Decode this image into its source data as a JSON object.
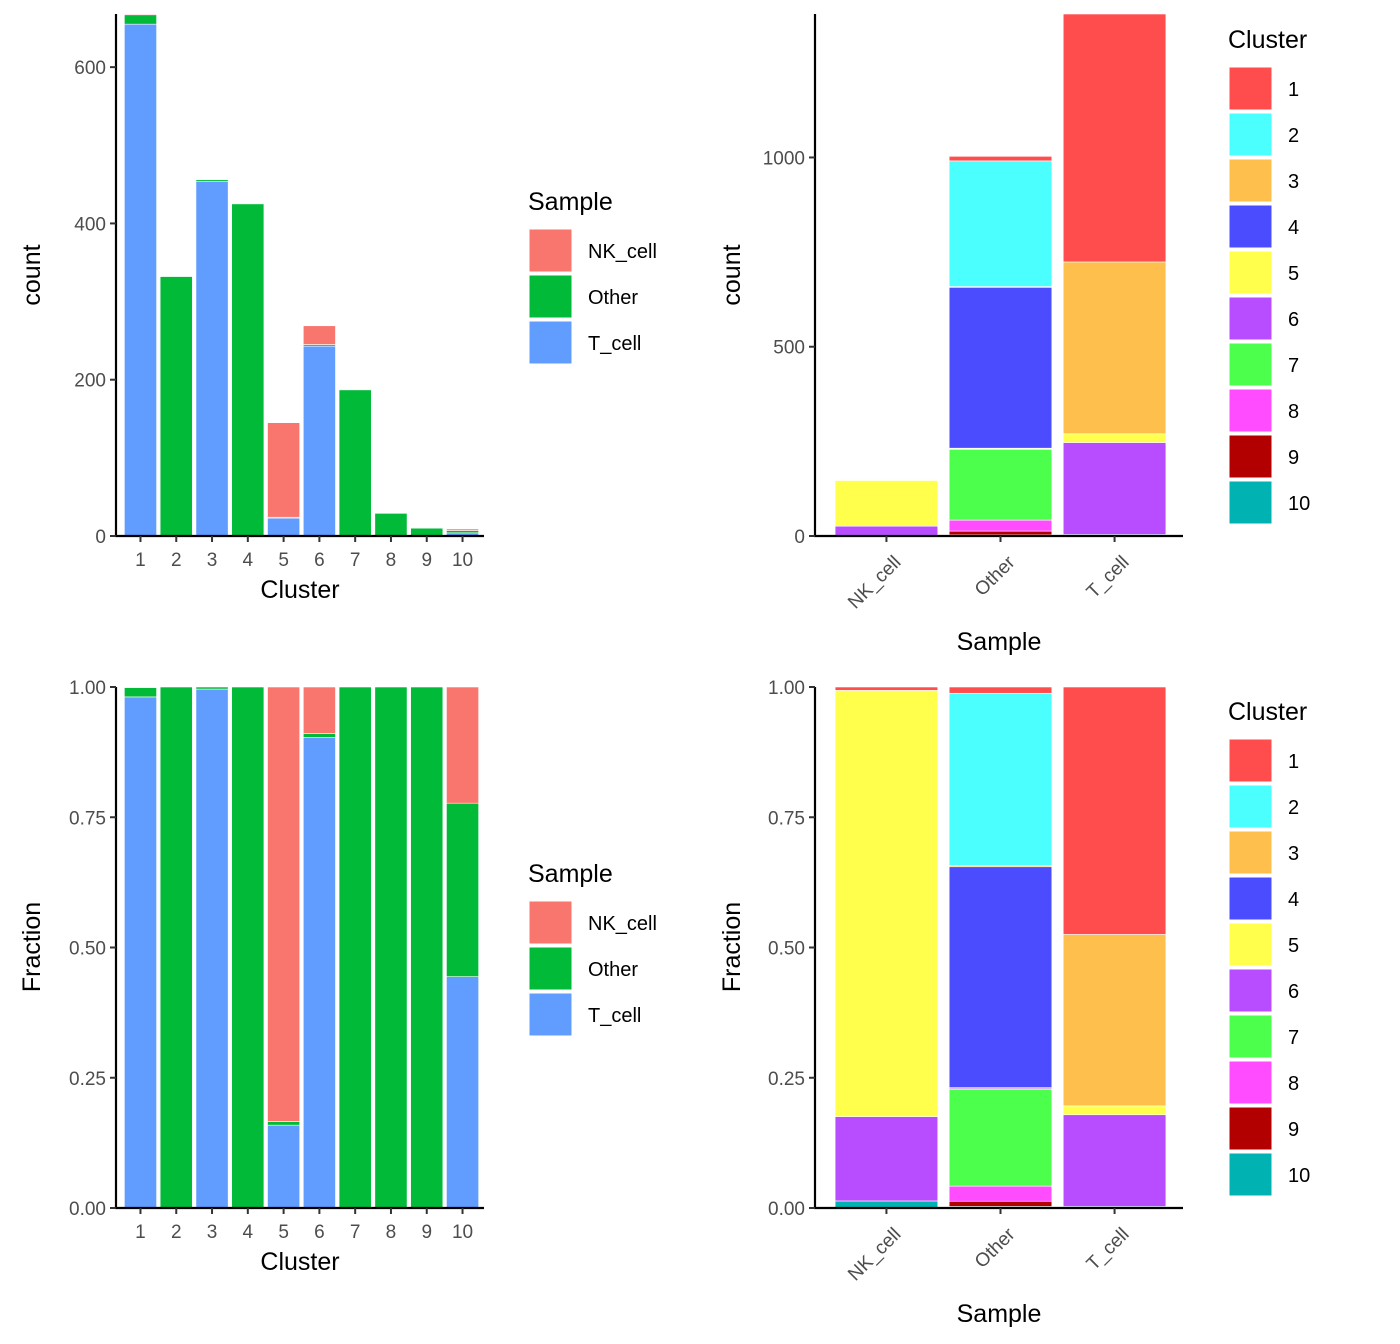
{
  "chart_data": [
    {
      "id": "count-by-cluster",
      "type": "bar",
      "stacked": true,
      "title": "",
      "xlabel": "Cluster",
      "ylabel": "count",
      "categories": [
        "1",
        "2",
        "3",
        "4",
        "5",
        "6",
        "7",
        "8",
        "9",
        "10"
      ],
      "ylim": [
        0,
        668
      ],
      "yticks": [
        0,
        200,
        400,
        600
      ],
      "ytick_labels": [
        "0",
        "200",
        "400",
        "600"
      ],
      "grid": false,
      "legend": {
        "title": "Sample",
        "position": "right"
      },
      "series": [
        {
          "name": "T_cell",
          "color": "#619CFF",
          "values": [
            655,
            0,
            454,
            0,
            23,
            243,
            0,
            0,
            0,
            4
          ]
        },
        {
          "name": "Other",
          "color": "#00BA38",
          "values": [
            12,
            332,
            2,
            425,
            1,
            2,
            187,
            29,
            10,
            3
          ]
        },
        {
          "name": "NK_cell",
          "color": "#F8766D",
          "values": [
            1,
            0,
            0,
            0,
            121,
            24,
            0,
            0,
            0,
            2
          ]
        }
      ]
    },
    {
      "id": "count-by-sample",
      "type": "bar",
      "stacked": true,
      "title": "",
      "xlabel": "Sample",
      "ylabel": "count",
      "categories": [
        "NK_cell",
        "Other",
        "T_cell"
      ],
      "ylim": [
        0,
        1379
      ],
      "yticks": [
        0,
        500,
        1000
      ],
      "ytick_labels": [
        "0",
        "500",
        "1000"
      ],
      "grid": false,
      "legend": {
        "title": "Cluster",
        "position": "right"
      },
      "series": [
        {
          "name": "10",
          "color": "#00B2B2",
          "values": [
            2,
            3,
            4
          ]
        },
        {
          "name": "9",
          "color": "#B20000",
          "values": [
            0,
            10,
            0
          ]
        },
        {
          "name": "8",
          "color": "#FF4CFF",
          "values": [
            0,
            29,
            0
          ]
        },
        {
          "name": "7",
          "color": "#4CFF4C",
          "values": [
            0,
            187,
            0
          ]
        },
        {
          "name": "6",
          "color": "#B84CFF",
          "values": [
            24,
            2,
            243
          ]
        },
        {
          "name": "5",
          "color": "#FFFF4C",
          "values": [
            121,
            1,
            23
          ]
        },
        {
          "name": "4",
          "color": "#4C4CFF",
          "values": [
            0,
            425,
            0
          ]
        },
        {
          "name": "3",
          "color": "#FFBF4C",
          "values": [
            0,
            2,
            454
          ]
        },
        {
          "name": "2",
          "color": "#4CFFFF",
          "values": [
            0,
            332,
            0
          ]
        },
        {
          "name": "1",
          "color": "#FF4C4C",
          "values": [
            1,
            12,
            655
          ]
        }
      ]
    },
    {
      "id": "fraction-by-cluster",
      "type": "bar",
      "stacked": true,
      "normalized": true,
      "title": "",
      "xlabel": "Cluster",
      "ylabel": "Fraction",
      "categories": [
        "1",
        "2",
        "3",
        "4",
        "5",
        "6",
        "7",
        "8",
        "9",
        "10"
      ],
      "ylim": [
        0,
        1
      ],
      "yticks": [
        0,
        0.25,
        0.5,
        0.75,
        1
      ],
      "ytick_labels": [
        "0.00",
        "0.25",
        "0.50",
        "0.75",
        "1.00"
      ],
      "grid": false,
      "legend": {
        "title": "Sample",
        "position": "right"
      },
      "series": [
        {
          "name": "T_cell",
          "color": "#619CFF",
          "values": [
            0.981,
            0,
            0.996,
            0,
            0.159,
            0.903,
            0,
            0,
            0,
            0.444
          ]
        },
        {
          "name": "Other",
          "color": "#00BA38",
          "values": [
            0.018,
            1,
            0.004,
            1,
            0.007,
            0.008,
            1,
            1,
            1,
            0.333
          ]
        },
        {
          "name": "NK_cell",
          "color": "#F8766D",
          "values": [
            0.001,
            0,
            0,
            0,
            0.834,
            0.089,
            0,
            0,
            0,
            0.223
          ]
        }
      ]
    },
    {
      "id": "fraction-by-sample",
      "type": "bar",
      "stacked": true,
      "normalized": true,
      "title": "",
      "xlabel": "Sample",
      "ylabel": "Fraction",
      "categories": [
        "NK_cell",
        "Other",
        "T_cell"
      ],
      "ylim": [
        0,
        1
      ],
      "yticks": [
        0,
        0.25,
        0.5,
        0.75,
        1
      ],
      "ytick_labels": [
        "0.00",
        "0.25",
        "0.50",
        "0.75",
        "1.00"
      ],
      "grid": false,
      "legend": {
        "title": "Cluster",
        "position": "right"
      },
      "series": [
        {
          "name": "10",
          "color": "#00B2B2",
          "values": [
            0.0135,
            0.003,
            0.003
          ]
        },
        {
          "name": "9",
          "color": "#B20000",
          "values": [
            0,
            0.01,
            0
          ]
        },
        {
          "name": "8",
          "color": "#FF4CFF",
          "values": [
            0,
            0.029,
            0
          ]
        },
        {
          "name": "7",
          "color": "#4CFF4C",
          "values": [
            0,
            0.186,
            0
          ]
        },
        {
          "name": "6",
          "color": "#B84CFF",
          "values": [
            0.162,
            0.002,
            0.176
          ]
        },
        {
          "name": "5",
          "color": "#FFFF4C",
          "values": [
            0.818,
            0.001,
            0.017
          ]
        },
        {
          "name": "4",
          "color": "#4C4CFF",
          "values": [
            0,
            0.424,
            0
          ]
        },
        {
          "name": "3",
          "color": "#FFBF4C",
          "values": [
            0,
            0.002,
            0.329
          ]
        },
        {
          "name": "2",
          "color": "#4CFFFF",
          "values": [
            0,
            0.331,
            0
          ]
        },
        {
          "name": "1",
          "color": "#FF4C4C",
          "values": [
            0.0065,
            0.012,
            0.475
          ]
        }
      ]
    }
  ],
  "legends": {
    "sample": {
      "title": "Sample",
      "items": [
        {
          "label": "NK_cell",
          "color": "#F8766D"
        },
        {
          "label": "Other",
          "color": "#00BA38"
        },
        {
          "label": "T_cell",
          "color": "#619CFF"
        }
      ]
    },
    "cluster": {
      "title": "Cluster",
      "items": [
        {
          "label": "1",
          "color": "#FF4C4C"
        },
        {
          "label": "2",
          "color": "#4CFFFF"
        },
        {
          "label": "3",
          "color": "#FFBF4C"
        },
        {
          "label": "4",
          "color": "#4C4CFF"
        },
        {
          "label": "5",
          "color": "#FFFF4C"
        },
        {
          "label": "6",
          "color": "#B84CFF"
        },
        {
          "label": "7",
          "color": "#4CFF4C"
        },
        {
          "label": "8",
          "color": "#FF4CFF"
        },
        {
          "label": "9",
          "color": "#B20000"
        },
        {
          "label": "10",
          "color": "#00B2B2"
        }
      ]
    }
  }
}
